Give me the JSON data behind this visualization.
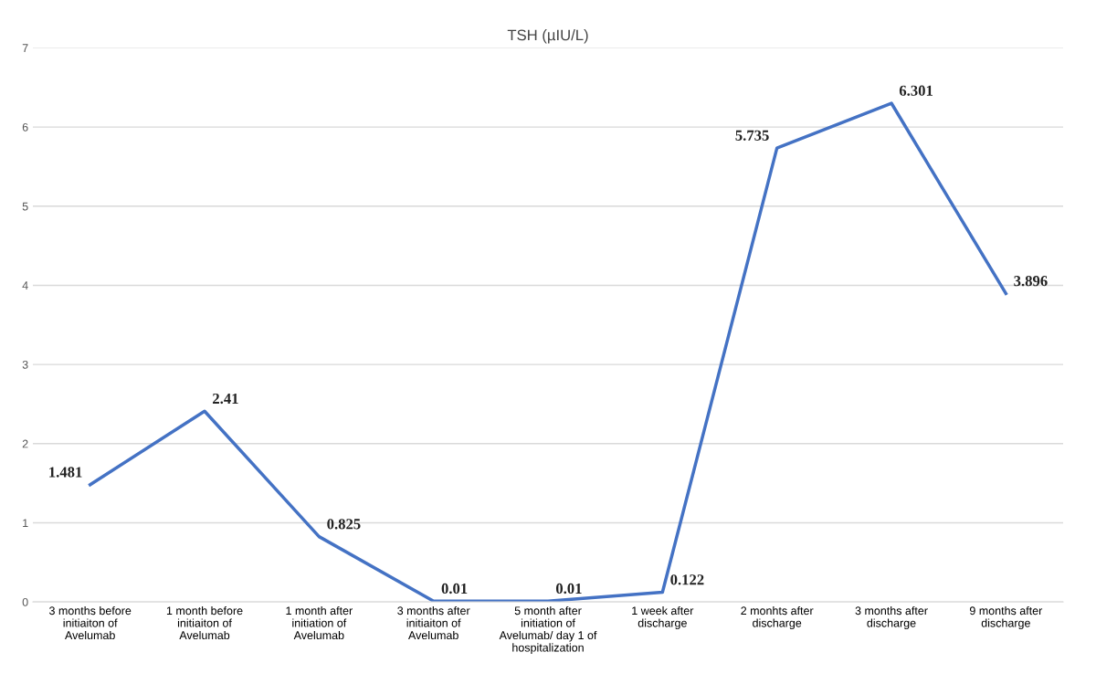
{
  "chart_data": {
    "type": "line",
    "title": "TSH (µIU/L)",
    "categories": [
      "3 months before initiaiton of Avelumab",
      "1 month before initiaiton of Avelumab",
      "1 month after initiation of Avelumab",
      "3 months after initiaiton of Avelumab",
      "5 month after initiation of Avelumab/ day 1 of hospitalization",
      "1 week after discharge",
      "2 monhts after discharge",
      "3 months after discharge",
      "9 months after discharge"
    ],
    "series": [
      {
        "color": "#4472c4",
        "values": [
          1.481,
          2.41,
          0.825,
          0.01,
          0.01,
          0.122,
          5.735,
          6.301,
          3.896
        ]
      }
    ],
    "ylim": [
      0,
      7
    ],
    "yticks": [
      0,
      1,
      2,
      3,
      4,
      5,
      6,
      7
    ],
    "grid": "y",
    "data_labels": true,
    "marker": "none",
    "line_style": "solid",
    "legend": false
  }
}
